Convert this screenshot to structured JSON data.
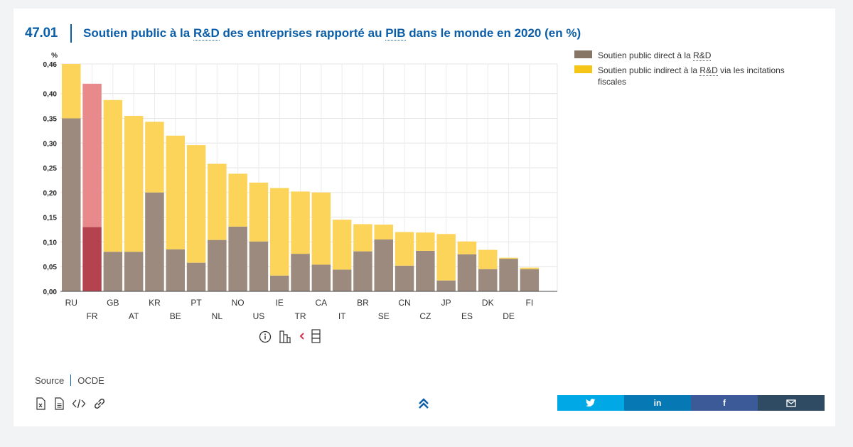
{
  "header": {
    "figure_number": "47.01",
    "title_parts": [
      "Soutien public à la ",
      "R&D",
      " des entreprises rapporté au ",
      "PIB",
      " dans le monde en 2020 (en %)"
    ]
  },
  "chart_data": {
    "type": "bar",
    "stacked": true,
    "y_unit_label": "%",
    "ylim": [
      0,
      0.46
    ],
    "y_ticks": [
      "0,00",
      "0,05",
      "0,10",
      "0,15",
      "0,20",
      "0,25",
      "0,30",
      "0,35",
      "0,40",
      "0,46"
    ],
    "y_tick_values": [
      0,
      0.05,
      0.1,
      0.15,
      0.2,
      0.25,
      0.3,
      0.35,
      0.4,
      0.46
    ],
    "grid": true,
    "legend_position": "top-right",
    "categories": [
      "RU",
      "FR",
      "GB",
      "AT",
      "KR",
      "BE",
      "PT",
      "NL",
      "NO",
      "US",
      "IE",
      "TR",
      "CA",
      "IT",
      "BR",
      "SE",
      "CN",
      "CZ",
      "JP",
      "ES",
      "DK",
      "DE",
      "FI"
    ],
    "highlight_category": "FR",
    "series": [
      {
        "name": "Soutien public direct à la R&D",
        "color": "#9b8a7d",
        "highlight_color": "#b5434f",
        "values": [
          0.35,
          0.13,
          0.08,
          0.08,
          0.2,
          0.085,
          0.058,
          0.104,
          0.131,
          0.101,
          0.032,
          0.076,
          0.054,
          0.044,
          0.081,
          0.105,
          0.052,
          0.082,
          0.022,
          0.075,
          0.045,
          0.066,
          0.045
        ]
      },
      {
        "name": "Soutien public indirect à la R&D via les incitations fiscales",
        "color": "#fcd45a",
        "highlight_color": "#e8898c",
        "values": [
          0.11,
          0.29,
          0.307,
          0.275,
          0.143,
          0.23,
          0.238,
          0.154,
          0.107,
          0.119,
          0.177,
          0.126,
          0.146,
          0.101,
          0.055,
          0.03,
          0.068,
          0.037,
          0.094,
          0.026,
          0.039,
          0.002,
          0.003
        ]
      }
    ]
  },
  "legend": {
    "items": [
      {
        "parts": [
          "Soutien public direct à la ",
          "R&D",
          ""
        ],
        "color": "#877565"
      },
      {
        "parts": [
          "Soutien public indirect à la ",
          "R&D",
          " via les incitations fiscales"
        ],
        "color": "#f5c518"
      }
    ]
  },
  "tools": [
    "info-icon",
    "bar-chart-icon",
    "table-icon"
  ],
  "source": {
    "label": "Source",
    "value": "OCDE"
  },
  "downloads": [
    "excel-icon",
    "document-icon",
    "code-icon",
    "link-icon"
  ],
  "share": [
    {
      "name": "twitter",
      "color": "#00a9e6"
    },
    {
      "name": "linkedin",
      "color": "#0679b5"
    },
    {
      "name": "facebook",
      "color": "#3c5a98"
    },
    {
      "name": "email",
      "color": "#2f4a63"
    }
  ]
}
